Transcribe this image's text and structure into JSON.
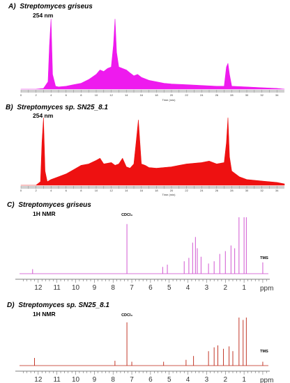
{
  "chart_data": [
    {
      "type": "area",
      "panel": "A)",
      "title": "Streptomyces griseus",
      "subtitle": "254 nm",
      "xlabel": "Time (min)",
      "xlim": [
        0,
        35
      ],
      "xticks": [
        0,
        1,
        2,
        3,
        4,
        5,
        6,
        7,
        8,
        9,
        10,
        11,
        12,
        13,
        14,
        15,
        16,
        17,
        18,
        19,
        20,
        21,
        22,
        23,
        24,
        25,
        26,
        27,
        28,
        29,
        30,
        31,
        32,
        33,
        34
      ],
      "xtick_labels": [
        "0",
        "",
        "2",
        "",
        "4",
        "",
        "6",
        "",
        "8",
        "",
        "10",
        "",
        "12",
        "",
        "14",
        "",
        "16",
        "",
        "18",
        "",
        "20",
        "",
        "22",
        "",
        "24",
        "",
        "26",
        "",
        "28",
        "",
        "30",
        "",
        "32",
        "",
        "34"
      ],
      "color": "#ee1aee",
      "ylim": [
        0,
        100
      ],
      "series": [
        {
          "x": [
            0,
            2,
            3,
            3.6,
            3.8,
            4,
            4.2,
            4.6,
            5,
            6,
            7,
            8,
            9,
            10,
            10.5,
            11,
            11.5,
            12,
            12.3,
            12.5,
            12.7,
            13,
            13.5,
            14,
            14.5,
            15,
            15.5,
            16,
            17,
            18,
            19,
            20,
            22,
            24,
            26,
            27,
            27.3,
            27.5,
            27.7,
            28,
            30,
            32,
            34,
            35
          ],
          "y": [
            0,
            0,
            1,
            10,
            60,
            95,
            20,
            4,
            3,
            4,
            6,
            8,
            13,
            20,
            26,
            24,
            28,
            30,
            60,
            95,
            50,
            30,
            28,
            26,
            22,
            18,
            20,
            16,
            12,
            10,
            8,
            7,
            6,
            5,
            4,
            4,
            30,
            35,
            20,
            4,
            3,
            2,
            1,
            0
          ]
        }
      ]
    },
    {
      "type": "area",
      "panel": "B)",
      "title": "Streptomyces sp. SN25_8.1",
      "subtitle": "254 nm",
      "xlabel": "Time (min)",
      "xlim": [
        0,
        35
      ],
      "xticks": [
        0,
        1,
        2,
        3,
        4,
        5,
        6,
        7,
        8,
        9,
        10,
        11,
        12,
        13,
        14,
        15,
        16,
        17,
        18,
        19,
        20,
        21,
        22,
        23,
        24,
        25,
        26,
        27,
        28,
        29,
        30,
        31,
        32,
        33,
        34
      ],
      "xtick_labels": [
        "0",
        "",
        "2",
        "",
        "4",
        "",
        "6",
        "",
        "8",
        "",
        "10",
        "",
        "12",
        "",
        "14",
        "",
        "16",
        "",
        "18",
        "",
        "20",
        "",
        "22",
        "",
        "24",
        "",
        "26",
        "",
        "28",
        "",
        "30",
        "",
        "32",
        "",
        "34"
      ],
      "color": "#ee1111",
      "ylim": [
        0,
        100
      ],
      "series": [
        {
          "x": [
            0,
            2,
            2.6,
            2.8,
            3,
            3.2,
            3.5,
            4,
            5,
            6,
            7,
            8,
            9,
            10,
            10.5,
            11,
            12,
            12.5,
            13,
            13.5,
            14,
            14.5,
            15,
            15.3,
            15.6,
            16,
            16.5,
            17,
            18,
            20,
            22,
            24,
            25,
            26,
            27,
            27.3,
            27.5,
            27.7,
            28,
            29,
            30,
            32,
            34,
            35
          ],
          "y": [
            0,
            0,
            5,
            60,
            95,
            20,
            5,
            8,
            12,
            16,
            22,
            28,
            30,
            35,
            38,
            30,
            32,
            28,
            30,
            38,
            26,
            24,
            30,
            60,
            92,
            30,
            28,
            25,
            24,
            26,
            30,
            32,
            34,
            30,
            32,
            60,
            95,
            40,
            20,
            12,
            8,
            6,
            4,
            2
          ]
        }
      ]
    },
    {
      "type": "line",
      "panel": "C)",
      "title": "Streptomyces griseus",
      "subtitle": "1H NMR",
      "xlabel": "ppm",
      "xlim": [
        13,
        -0.3
      ],
      "xticks": [
        12,
        11,
        10,
        9,
        8,
        7,
        6,
        5,
        4,
        3,
        2,
        1
      ],
      "color": "#cc44cc",
      "ylim": [
        0,
        100
      ],
      "annotations": [
        {
          "text": "CDCl₃",
          "x": 7.26
        },
        {
          "text": "TMS",
          "x": 0
        }
      ],
      "peaks": [
        {
          "x": 12.3,
          "y": 8
        },
        {
          "x": 7.26,
          "y": 88
        },
        {
          "x": 5.35,
          "y": 12
        },
        {
          "x": 5.1,
          "y": 16
        },
        {
          "x": 4.2,
          "y": 22
        },
        {
          "x": 3.95,
          "y": 28
        },
        {
          "x": 3.75,
          "y": 55
        },
        {
          "x": 3.6,
          "y": 65
        },
        {
          "x": 3.5,
          "y": 45
        },
        {
          "x": 3.3,
          "y": 30
        },
        {
          "x": 2.9,
          "y": 18
        },
        {
          "x": 2.6,
          "y": 22
        },
        {
          "x": 2.3,
          "y": 35
        },
        {
          "x": 2.0,
          "y": 40
        },
        {
          "x": 1.7,
          "y": 50
        },
        {
          "x": 1.5,
          "y": 45
        },
        {
          "x": 1.27,
          "y": 100
        },
        {
          "x": 1.0,
          "y": 100
        },
        {
          "x": 0.88,
          "y": 100
        },
        {
          "x": 0.0,
          "y": 20
        }
      ]
    },
    {
      "type": "line",
      "panel": "D)",
      "title": "Streptomyces sp. SN25_8.1",
      "subtitle": "1H NMR",
      "xlabel": "ppm",
      "xlim": [
        13,
        -0.3
      ],
      "xticks": [
        12,
        11,
        10,
        9,
        8,
        7,
        6,
        5,
        4,
        3,
        2,
        1
      ],
      "color": "#bb2211",
      "ylim": [
        0,
        100
      ],
      "annotations": [
        {
          "text": "CDCl₃",
          "x": 7.26
        },
        {
          "text": "TMS",
          "x": 0
        }
      ],
      "peaks": [
        {
          "x": 12.2,
          "y": 16
        },
        {
          "x": 7.9,
          "y": 10
        },
        {
          "x": 7.26,
          "y": 90
        },
        {
          "x": 7.0,
          "y": 8
        },
        {
          "x": 5.3,
          "y": 8
        },
        {
          "x": 4.1,
          "y": 12
        },
        {
          "x": 3.7,
          "y": 20
        },
        {
          "x": 2.9,
          "y": 30
        },
        {
          "x": 2.6,
          "y": 38
        },
        {
          "x": 2.4,
          "y": 42
        },
        {
          "x": 2.1,
          "y": 35
        },
        {
          "x": 1.8,
          "y": 40
        },
        {
          "x": 1.6,
          "y": 30
        },
        {
          "x": 1.27,
          "y": 100
        },
        {
          "x": 1.05,
          "y": 95
        },
        {
          "x": 0.88,
          "y": 100
        },
        {
          "x": 0.0,
          "y": 8
        }
      ]
    }
  ]
}
